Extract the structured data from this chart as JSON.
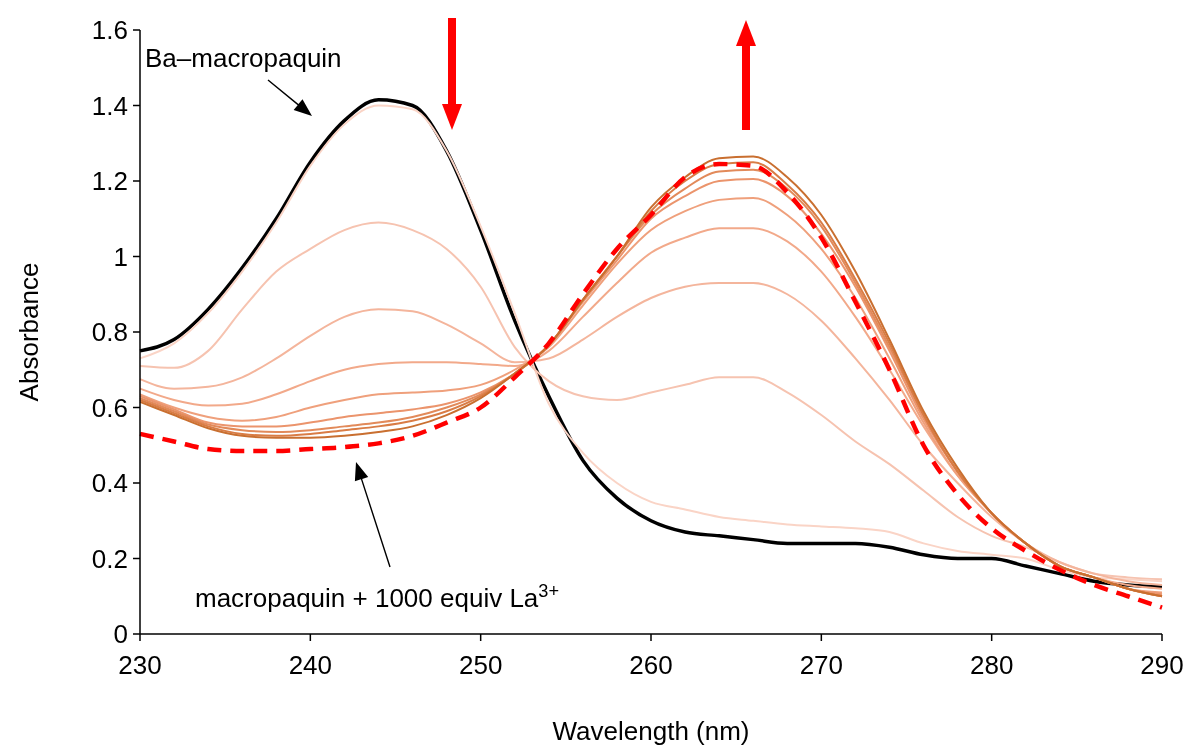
{
  "chart_data": {
    "type": "line",
    "xlabel": "Wavelength (nm)",
    "ylabel": "Absorbance",
    "x": [
      230,
      232,
      234,
      236,
      238,
      240,
      242,
      244,
      246,
      248,
      250,
      252,
      254,
      256,
      258,
      260,
      262,
      264,
      266,
      268,
      270,
      272,
      274,
      276,
      278,
      280,
      282,
      284,
      286,
      288,
      290
    ],
    "xlim": [
      230,
      290
    ],
    "xticks": [
      230,
      240,
      250,
      260,
      270,
      280,
      290
    ],
    "ylim": [
      0,
      1.6
    ],
    "yticks": [
      0,
      0.2,
      0.4,
      0.6,
      0.8,
      1,
      1.2,
      1.4,
      1.6
    ],
    "grid": false,
    "marker": "none",
    "series": [
      {
        "color": "#000000",
        "line_style": "solid",
        "values": [
          0.75,
          0.78,
          0.86,
          0.97,
          1.1,
          1.25,
          1.36,
          1.415,
          1.4,
          1.28,
          1.07,
          0.83,
          0.63,
          0.46,
          0.36,
          0.3,
          0.27,
          0.26,
          0.25,
          0.24,
          0.24,
          0.24,
          0.23,
          0.21,
          0.2,
          0.2,
          0.18,
          0.16,
          0.14,
          0.13,
          0.125
        ]
      },
      {
        "color": "#fad4c6",
        "line_style": "solid",
        "values": [
          0.73,
          0.77,
          0.85,
          0.96,
          1.09,
          1.24,
          1.35,
          1.4,
          1.39,
          1.28,
          1.08,
          0.85,
          0.61,
          0.48,
          0.4,
          0.35,
          0.33,
          0.31,
          0.3,
          0.29,
          0.285,
          0.28,
          0.27,
          0.24,
          0.22,
          0.21,
          0.2,
          0.17,
          0.15,
          0.145,
          0.14
        ]
      },
      {
        "color": "#f6c3b0",
        "line_style": "solid",
        "values": [
          0.71,
          0.705,
          0.75,
          0.86,
          0.96,
          1.02,
          1.07,
          1.09,
          1.07,
          1.02,
          0.92,
          0.76,
          0.67,
          0.63,
          0.62,
          0.64,
          0.66,
          0.68,
          0.68,
          0.64,
          0.58,
          0.51,
          0.45,
          0.38,
          0.31,
          0.26,
          0.23,
          0.19,
          0.16,
          0.15,
          0.145
        ]
      },
      {
        "color": "#f4b59c",
        "line_style": "solid",
        "values": [
          0.675,
          0.65,
          0.655,
          0.68,
          0.73,
          0.79,
          0.84,
          0.86,
          0.855,
          0.82,
          0.77,
          0.72,
          0.73,
          0.78,
          0.84,
          0.89,
          0.92,
          0.93,
          0.93,
          0.9,
          0.83,
          0.73,
          0.62,
          0.5,
          0.4,
          0.31,
          0.24,
          0.19,
          0.16,
          0.14,
          0.13
        ]
      },
      {
        "color": "#f2a98a",
        "line_style": "solid",
        "values": [
          0.65,
          0.62,
          0.605,
          0.61,
          0.635,
          0.67,
          0.7,
          0.715,
          0.72,
          0.72,
          0.715,
          0.71,
          0.75,
          0.84,
          0.93,
          1.01,
          1.05,
          1.075,
          1.075,
          1.04,
          0.96,
          0.84,
          0.7,
          0.55,
          0.42,
          0.32,
          0.24,
          0.18,
          0.15,
          0.13,
          0.12
        ]
      },
      {
        "color": "#efa07c",
        "line_style": "solid",
        "values": [
          0.635,
          0.6,
          0.575,
          0.565,
          0.575,
          0.6,
          0.62,
          0.635,
          0.64,
          0.645,
          0.66,
          0.7,
          0.76,
          0.87,
          0.98,
          1.07,
          1.12,
          1.15,
          1.155,
          1.11,
          1.02,
          0.89,
          0.73,
          0.56,
          0.42,
          0.32,
          0.24,
          0.18,
          0.15,
          0.12,
          0.11
        ]
      },
      {
        "color": "#eb946c",
        "line_style": "solid",
        "values": [
          0.63,
          0.595,
          0.56,
          0.55,
          0.55,
          0.56,
          0.575,
          0.585,
          0.595,
          0.61,
          0.64,
          0.69,
          0.765,
          0.88,
          0.99,
          1.1,
          1.16,
          1.2,
          1.205,
          1.16,
          1.06,
          0.92,
          0.75,
          0.57,
          0.43,
          0.32,
          0.24,
          0.18,
          0.15,
          0.12,
          0.105
        ]
      },
      {
        "color": "#e28a5a",
        "line_style": "solid",
        "values": [
          0.625,
          0.59,
          0.555,
          0.54,
          0.535,
          0.54,
          0.55,
          0.56,
          0.575,
          0.6,
          0.635,
          0.69,
          0.765,
          0.885,
          1,
          1.11,
          1.18,
          1.225,
          1.23,
          1.18,
          1.08,
          0.93,
          0.76,
          0.58,
          0.43,
          0.32,
          0.24,
          0.18,
          0.15,
          0.12,
          0.1
        ]
      },
      {
        "color": "#d97c45",
        "line_style": "solid",
        "values": [
          0.62,
          0.585,
          0.55,
          0.53,
          0.525,
          0.53,
          0.54,
          0.55,
          0.565,
          0.59,
          0.63,
          0.69,
          0.765,
          0.885,
          1,
          1.12,
          1.2,
          1.245,
          1.25,
          1.19,
          1.09,
          0.94,
          0.77,
          0.58,
          0.43,
          0.32,
          0.24,
          0.18,
          0.15,
          0.12,
          0.1
        ]
      },
      {
        "color": "#c96f30",
        "line_style": "solid",
        "values": [
          0.615,
          0.58,
          0.545,
          0.525,
          0.52,
          0.52,
          0.525,
          0.535,
          0.55,
          0.58,
          0.625,
          0.69,
          0.765,
          0.885,
          1,
          1.13,
          1.21,
          1.26,
          1.265,
          1.21,
          1.11,
          0.96,
          0.78,
          0.59,
          0.44,
          0.32,
          0.24,
          0.18,
          0.15,
          0.12,
          0.1
        ]
      },
      {
        "color": "#ff0000",
        "line_style": "dashed",
        "values": [
          0.53,
          0.51,
          0.49,
          0.485,
          0.485,
          0.49,
          0.495,
          0.505,
          0.525,
          0.56,
          0.6,
          0.68,
          0.77,
          0.9,
          1.02,
          1.11,
          1.21,
          1.245,
          1.24,
          1.17,
          1.05,
          0.88,
          0.7,
          0.5,
          0.37,
          0.28,
          0.22,
          0.17,
          0.13,
          0.1,
          0.07
        ]
      }
    ],
    "annotations": [
      "Ba–macropaquin",
      "macropaquin + 1000 equiv La$^{3+}$"
    ]
  }
}
